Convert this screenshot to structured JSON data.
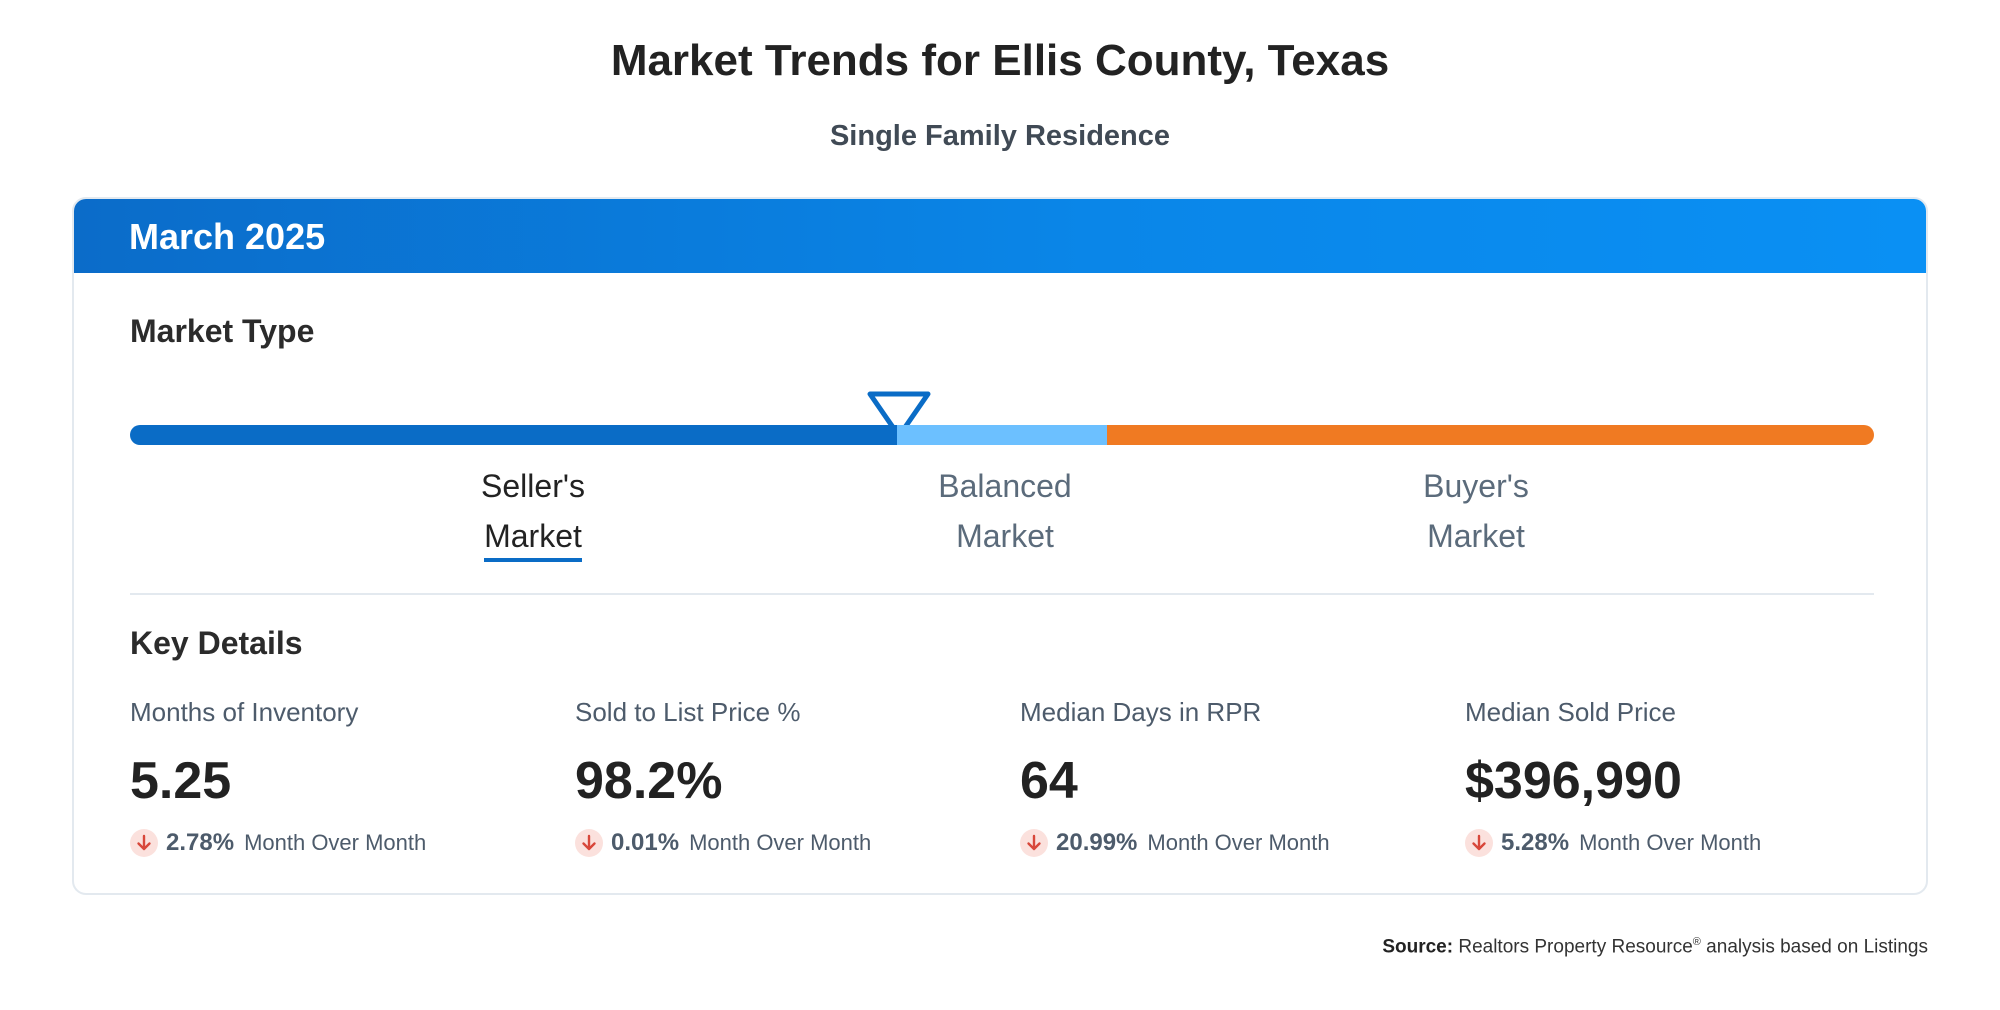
{
  "title": "Market Trends for Ellis County, Texas",
  "subtitle": "Single Family Residence",
  "card": {
    "period": "March 2025",
    "market_type_title": "Market Type",
    "key_details_title": "Key Details",
    "market_scale": {
      "current": "Seller's Market",
      "segments": [
        {
          "line1": "Seller's",
          "line2": "Market",
          "active": true,
          "color": "#0a6cc6"
        },
        {
          "line1": "Balanced",
          "line2": "Market",
          "active": false,
          "color": "#6cc0ff"
        },
        {
          "line1": "Buyer's",
          "line2": "Market",
          "active": false,
          "color": "#f07a22"
        }
      ]
    },
    "stats": [
      {
        "label": "Months of Inventory",
        "value": "5.25",
        "change": "2.78%",
        "direction": "down",
        "change_label": "Month Over Month"
      },
      {
        "label": "Sold to List Price %",
        "value": "98.2%",
        "change": "0.01%",
        "direction": "down",
        "change_label": "Month Over Month"
      },
      {
        "label": "Median Days in RPR",
        "value": "64",
        "change": "20.99%",
        "direction": "down",
        "change_label": "Month Over Month"
      },
      {
        "label": "Median Sold Price",
        "value": "$396,990",
        "change": "5.28%",
        "direction": "down",
        "change_label": "Month Over Month"
      }
    ]
  },
  "source": {
    "label": "Source:",
    "text_before_mark": "Realtors Property Resource",
    "mark": "®",
    "text_after_mark": " analysis based on Listings"
  },
  "icons": {
    "down": "arrow-down-icon",
    "marker": "triangle-marker-icon"
  },
  "colors": {
    "header_blue": "#0a86e8",
    "seller_blue": "#0a6cc6",
    "balanced_blue": "#6cc0ff",
    "buyer_orange": "#f07a22",
    "down_red": "#d8473a"
  }
}
